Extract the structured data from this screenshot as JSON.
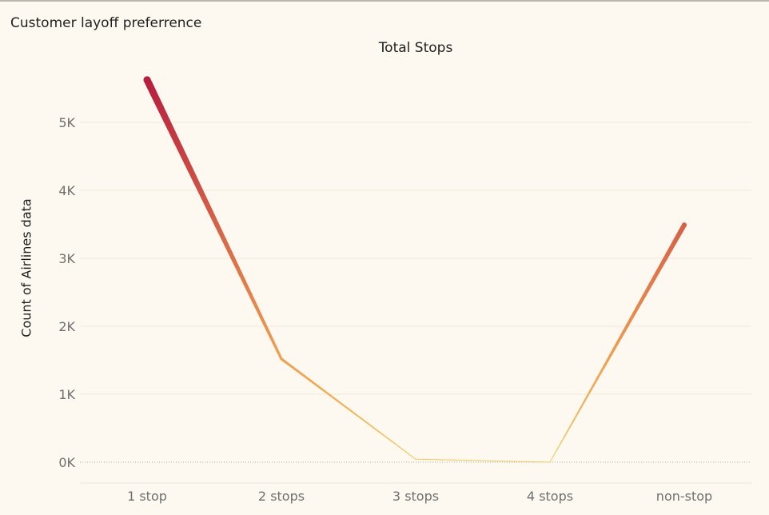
{
  "sheet_title": "Customer layoff preferrence",
  "colors": {
    "background": "#fdf9f0",
    "gradient_high": "#b71d3e",
    "gradient_mid": "#ef9a4f",
    "gradient_low": "#f2cc66"
  },
  "chart_data": {
    "type": "line",
    "title": "Total Stops",
    "xlabel": "",
    "ylabel": "Count of Airlines data",
    "categories": [
      "1 stop",
      "2 stops",
      "3 stops",
      "4 stops",
      "non-stop"
    ],
    "values": [
      5625,
      1520,
      45,
      1,
      3491
    ],
    "ylim": [
      0,
      6000
    ],
    "yticks": [
      0,
      1000,
      2000,
      3000,
      4000,
      5000
    ],
    "ytick_labels": [
      "0K",
      "1K",
      "2K",
      "3K",
      "4K",
      "5K"
    ],
    "grid": true,
    "encoding": "line color and width scale with value"
  }
}
